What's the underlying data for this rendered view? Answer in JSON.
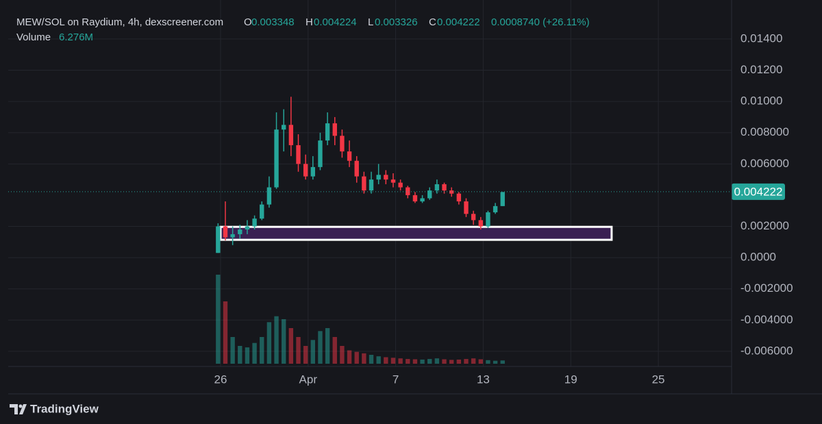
{
  "chart_data": {
    "type": "candlestick",
    "title": "MEW/SOL on Raydium, 4h, dexscreener.com",
    "ohlc_labels": {
      "open": "O",
      "high": "H",
      "low": "L",
      "close": "C"
    },
    "ohlc_values": {
      "open": "0.003348",
      "high": "0.004224",
      "low": "0.003326",
      "close": "0.004222"
    },
    "change": "0.0008740 (+26.11%)",
    "volume_label": "Volume",
    "volume_value": "6.276M",
    "last_price": {
      "value": 0.004222,
      "label": "0.004222"
    },
    "brand": "TradingView",
    "up_color": "#26a69a",
    "down_color": "#f23645",
    "zone": {
      "x": [
        26,
        52.8
      ],
      "y": [
        0.00114,
        0.00197
      ],
      "color": "#3a1f52"
    },
    "xlim": [
      11.45,
      61.02
    ],
    "xticks": [
      {
        "value": 26,
        "label": "26"
      },
      {
        "value": 32,
        "label": "Apr"
      },
      {
        "value": 38,
        "label": "7"
      },
      {
        "value": 44,
        "label": "13"
      },
      {
        "value": 50,
        "label": "19"
      },
      {
        "value": 56,
        "label": "25"
      }
    ],
    "ylim": [
      -0.00697,
      0.01562
    ],
    "yticks": [
      {
        "value": 0.014,
        "label": "0.01400"
      },
      {
        "value": 0.012,
        "label": "0.01200"
      },
      {
        "value": 0.01,
        "label": "0.01000"
      },
      {
        "value": 0.008,
        "label": "0.008000"
      },
      {
        "value": 0.006,
        "label": "0.006000"
      },
      {
        "value": 0.002,
        "label": "0.002000"
      },
      {
        "value": 0,
        "label": "0.0000"
      },
      {
        "value": -0.002,
        "label": "-0.002000"
      },
      {
        "value": -0.004,
        "label": "-0.004000"
      },
      {
        "value": -0.006,
        "label": "-0.006000"
      }
    ],
    "grid": true,
    "x": [
      25.83,
      26.33,
      26.83,
      27.33,
      27.83,
      28.33,
      28.83,
      29.33,
      29.83,
      30.33,
      30.83,
      31.33,
      31.83,
      32.33,
      32.83,
      33.33,
      33.83,
      34.33,
      34.83,
      35.33,
      35.83,
      36.33,
      36.83,
      37.33,
      37.83,
      38.33,
      38.83,
      39.33,
      39.83,
      40.33,
      40.83,
      41.33,
      41.83,
      42.33,
      42.83,
      43.33,
      43.83,
      44.33,
      44.83,
      45.33
    ],
    "open": [
      0.0003,
      0.002,
      0.0013,
      0.0015,
      0.0018,
      0.002,
      0.0025,
      0.0034,
      0.0045,
      0.0082,
      0.0085,
      0.0072,
      0.006,
      0.0052,
      0.0058,
      0.0075,
      0.0086,
      0.0078,
      0.0068,
      0.0062,
      0.0052,
      0.0043,
      0.005,
      0.0053,
      0.005,
      0.0048,
      0.0045,
      0.004,
      0.0036,
      0.0038,
      0.0043,
      0.0047,
      0.0043,
      0.0041,
      0.0036,
      0.0028,
      0.0024,
      0.002,
      0.0029,
      0.0033
    ],
    "high": [
      0.0022,
      0.0036,
      0.002,
      0.0021,
      0.0024,
      0.0027,
      0.0036,
      0.0052,
      0.0093,
      0.0095,
      0.0103,
      0.0079,
      0.0066,
      0.0065,
      0.008,
      0.0093,
      0.009,
      0.0082,
      0.0075,
      0.0065,
      0.0055,
      0.0055,
      0.006,
      0.0056,
      0.0054,
      0.005,
      0.0046,
      0.0042,
      0.004,
      0.0045,
      0.005,
      0.0048,
      0.0045,
      0.0042,
      0.0038,
      0.003,
      0.0026,
      0.003,
      0.0035,
      0.0042
    ],
    "low": [
      0.0003,
      0.0011,
      0.0008,
      0.0012,
      0.0015,
      0.0018,
      0.0024,
      0.0032,
      0.0044,
      0.0068,
      0.0065,
      0.0055,
      0.005,
      0.005,
      0.0056,
      0.0072,
      0.0072,
      0.0064,
      0.0058,
      0.0048,
      0.0041,
      0.0041,
      0.0047,
      0.0047,
      0.0045,
      0.0043,
      0.0038,
      0.0035,
      0.0035,
      0.0037,
      0.0041,
      0.0041,
      0.0039,
      0.0034,
      0.0026,
      0.0021,
      0.0018,
      0.0019,
      0.0028,
      0.0033
    ],
    "close": [
      0.002,
      0.0013,
      0.0015,
      0.0018,
      0.002,
      0.0025,
      0.0034,
      0.0045,
      0.0082,
      0.0085,
      0.0072,
      0.006,
      0.0052,
      0.0058,
      0.0075,
      0.0086,
      0.0078,
      0.0068,
      0.0062,
      0.0052,
      0.0043,
      0.005,
      0.0053,
      0.005,
      0.0048,
      0.0045,
      0.004,
      0.0036,
      0.0038,
      0.0043,
      0.0047,
      0.0043,
      0.0041,
      0.0036,
      0.0028,
      0.0024,
      0.002,
      0.0029,
      0.0033,
      0.0042
    ],
    "volume": [
      300,
      210,
      90,
      60,
      55,
      70,
      90,
      140,
      160,
      150,
      120,
      90,
      60,
      80,
      110,
      120,
      90,
      60,
      45,
      40,
      35,
      30,
      25,
      22,
      20,
      18,
      16,
      15,
      14,
      16,
      18,
      15,
      13,
      14,
      16,
      18,
      15,
      12,
      10,
      11
    ]
  }
}
